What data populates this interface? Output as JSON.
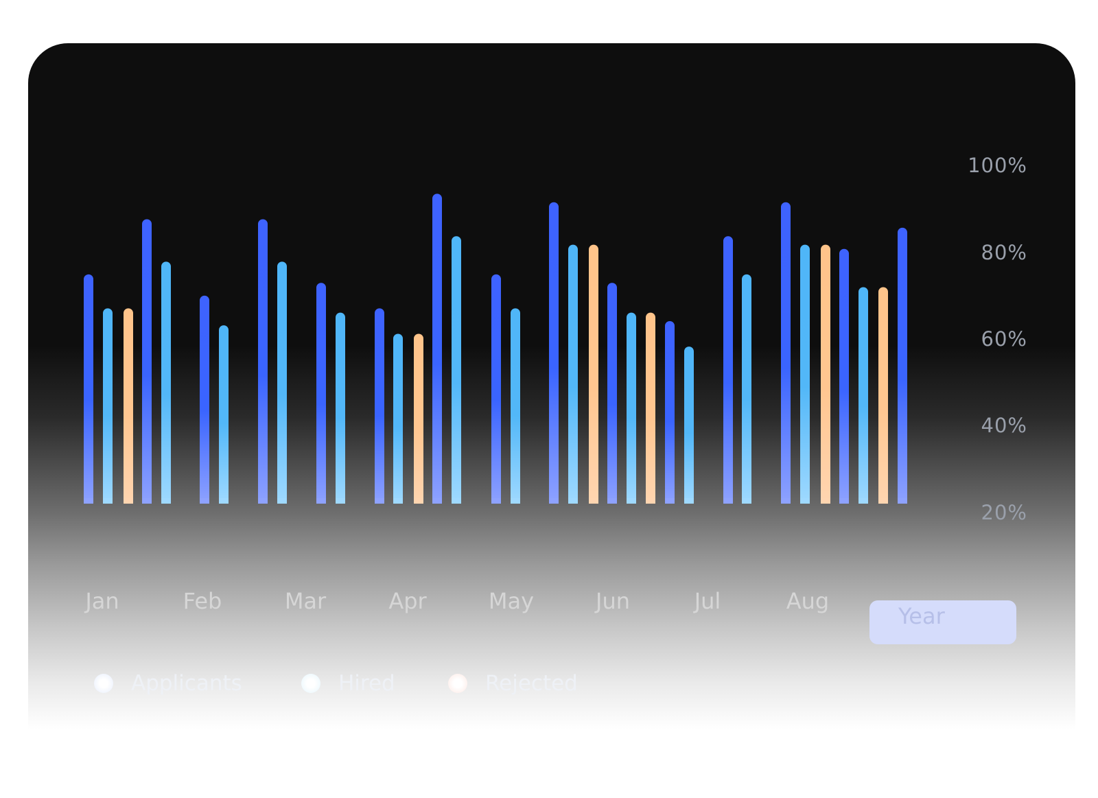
{
  "colors": {
    "applicants": "#3e63ff",
    "hired": "#4fb6f8",
    "rejected": "#ffc48a",
    "year_button_bg": "#d5dcfb"
  },
  "chart_data": {
    "type": "bar",
    "y_ticks": [
      "100%",
      "80%",
      "60%",
      "40%",
      "20%"
    ],
    "ylim": [
      20,
      100
    ],
    "categories": [
      "Jan",
      "Feb",
      "Mar",
      "Apr",
      "May",
      "Jun",
      "Jul",
      "Aug"
    ],
    "bars": [
      {
        "series": "Applicants",
        "value": 74
      },
      {
        "series": "Hired",
        "value": 66
      },
      {
        "series": "Rejected",
        "value": 66
      },
      {
        "series": "Applicants",
        "value": 87
      },
      {
        "series": "Hired",
        "value": 77
      },
      {
        "series": "Applicants",
        "value": 69
      },
      {
        "series": "Hired",
        "value": 62
      },
      {
        "series": "Applicants",
        "value": 87
      },
      {
        "series": "Hired",
        "value": 77
      },
      {
        "series": "Applicants",
        "value": 72
      },
      {
        "series": "Hired",
        "value": 65
      },
      {
        "series": "Applicants",
        "value": 66
      },
      {
        "series": "Hired",
        "value": 60
      },
      {
        "series": "Rejected",
        "value": 60
      },
      {
        "series": "Applicants",
        "value": 93
      },
      {
        "series": "Hired",
        "value": 83
      },
      {
        "series": "Applicants",
        "value": 74
      },
      {
        "series": "Hired",
        "value": 66
      },
      {
        "series": "Applicants",
        "value": 91
      },
      {
        "series": "Hired",
        "value": 81
      },
      {
        "series": "Rejected",
        "value": 81
      },
      {
        "series": "Applicants",
        "value": 72
      },
      {
        "series": "Hired",
        "value": 65
      },
      {
        "series": "Rejected",
        "value": 65
      },
      {
        "series": "Applicants",
        "value": 63
      },
      {
        "series": "Hired",
        "value": 57
      },
      {
        "series": "Applicants",
        "value": 83
      },
      {
        "series": "Hired",
        "value": 74
      },
      {
        "series": "Applicants",
        "value": 91
      },
      {
        "series": "Hired",
        "value": 81
      },
      {
        "series": "Rejected",
        "value": 81
      },
      {
        "series": "Applicants",
        "value": 80
      },
      {
        "series": "Hired",
        "value": 71
      },
      {
        "series": "Rejected",
        "value": 71
      },
      {
        "series": "Applicants",
        "value": 85
      }
    ]
  },
  "axis": {
    "months": [
      "Jan",
      "Feb",
      "Mar",
      "Apr",
      "May",
      "Jun",
      "Jul",
      "Aug"
    ],
    "year_button": "Year"
  },
  "legend": {
    "items": [
      {
        "label": "Applicants",
        "color": "#3e63ff"
      },
      {
        "label": "Hired",
        "color": "#4fb6f8"
      },
      {
        "label": "Rejected",
        "color": "#ffc48a"
      }
    ]
  }
}
